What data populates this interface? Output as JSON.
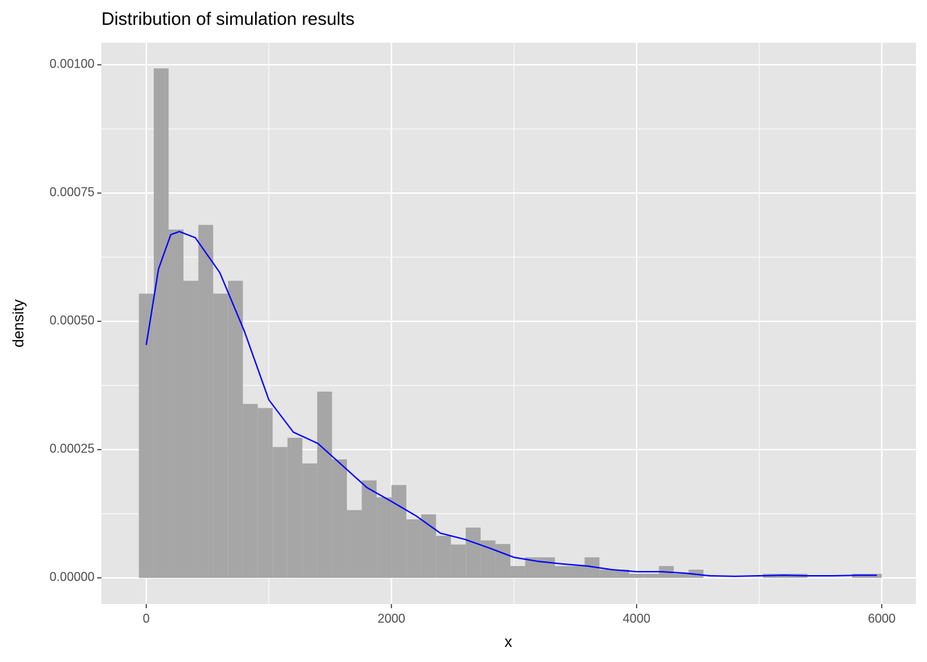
{
  "chart_data": {
    "type": "histogram",
    "title": "Distribution of simulation results",
    "x_label": "x",
    "y_label": "density",
    "bins": [
      -60,
      61.2,
      182.4,
      303.6,
      424.8,
      546,
      667.2,
      788.4,
      909.6,
      1030.8,
      1152,
      1273.2,
      1394.4,
      1515.6,
      1636.8,
      1758,
      1879.2,
      2000.4,
      2121.6,
      2242.8,
      2364,
      2485.2,
      2606.4,
      2727.6,
      2848.8,
      2970,
      3091.2,
      3212.4,
      3333.6,
      3454.8,
      3576,
      3697.2,
      3818.4,
      3939.6,
      4060.8,
      4182,
      4303.2,
      4424.4,
      4545.6,
      4666.8,
      4788,
      4909.2,
      5030.4,
      5151.6,
      5272.8,
      5394,
      5515.2,
      5636.4,
      5757.6,
      5878.8,
      6000
    ],
    "values": [
      0.000554,
      0.000993,
      0.000679,
      0.000579,
      0.000688,
      0.000554,
      0.000579,
      0.000339,
      0.000331,
      0.000255,
      0.000273,
      0.000223,
      0.000363,
      0.000231,
      0.000132,
      0.00019,
      0.000157,
      0.000181,
      0.000114,
      0.000124,
      8.2e-05,
      6.5e-05,
      9.8e-05,
      7.3e-05,
      6.6e-05,
      2.3e-05,
      4e-05,
      4e-05,
      2.3e-05,
      2.3e-05,
      4e-05,
      1.6e-05,
      1.6e-05,
      8e-06,
      8e-06,
      2.3e-05,
      8e-06,
      1.6e-05,
      0,
      0,
      0,
      0,
      8e-06,
      8e-06,
      8e-06,
      0,
      0,
      0,
      8e-06,
      8e-06
    ],
    "color": "#a6a6a6",
    "density": {
      "type": "line",
      "color": "#0000ff",
      "x": [
        0,
        100,
        200,
        270,
        400,
        600,
        800,
        1000,
        1200,
        1400,
        1600,
        1800,
        2000,
        2200,
        2400,
        2600,
        2800,
        3000,
        3200,
        3400,
        3600,
        3800,
        4000,
        4200,
        4400,
        4600,
        4800,
        5000,
        5200,
        5400,
        5600,
        5800,
        5960
      ],
      "values": [
        0.000454,
        0.000602,
        0.000669,
        0.000675,
        0.000663,
        0.000595,
        0.000481,
        0.000347,
        0.000284,
        0.000262,
        0.000219,
        0.000176,
        0.000149,
        0.000121,
        8.7e-05,
        7.5e-05,
        5.8e-05,
        4e-05,
        3.2e-05,
        2.7e-05,
        2.3e-05,
        1.6e-05,
        1.2e-05,
        1.2e-05,
        9e-06,
        4e-06,
        3e-06,
        4e-06,
        5e-06,
        4e-06,
        4e-06,
        5e-06,
        5e-06
      ]
    },
    "xlim": [
      -366,
      6279
    ],
    "ylim": [
      -5.11e-05,
      0.001043
    ],
    "xticks": [
      0,
      2000,
      4000,
      6000
    ],
    "yticks": [
      {
        "value": 0,
        "label": "0.00000"
      },
      {
        "value": 0.00025,
        "label": "0.00025"
      },
      {
        "value": 0.0005,
        "label": "0.00050"
      },
      {
        "value": 0.00075,
        "label": "0.00075"
      },
      {
        "value": 0.001,
        "label": "0.00100"
      }
    ],
    "grid": true,
    "panel_color": "#e5e5e5"
  }
}
